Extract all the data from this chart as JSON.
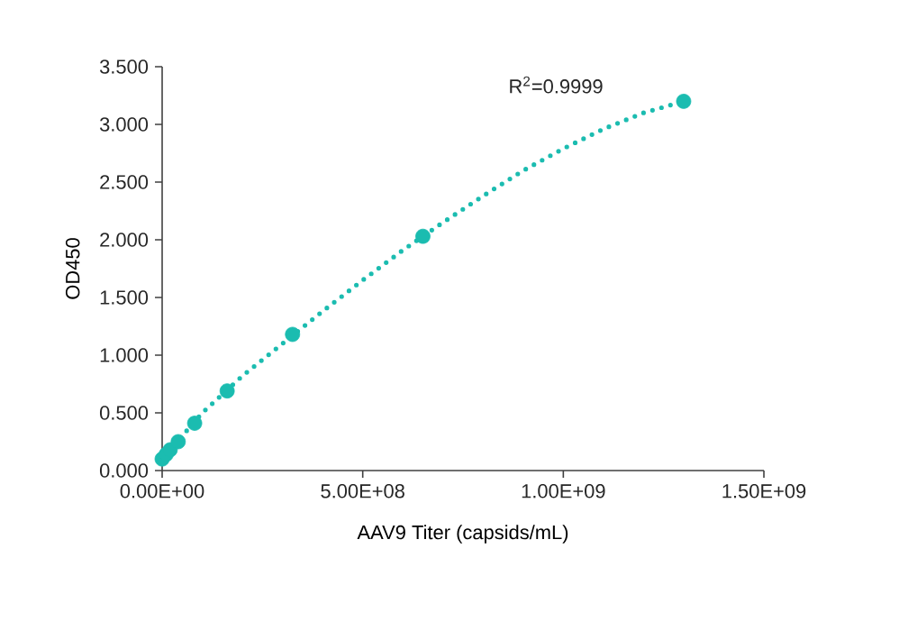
{
  "chart_data": {
    "type": "scatter",
    "xlabel": "AAV9 Titer (capsids/mL)",
    "ylabel": "OD450",
    "annotations": [
      "R$^{2}$=0.9999"
    ],
    "xlim": [
      0,
      1500000000
    ],
    "ylim": [
      0,
      3.5
    ],
    "xticks": [
      {
        "value": 0,
        "label": "0.00E+00"
      },
      {
        "value": 500000000,
        "label": "5.00E+08"
      },
      {
        "value": 1000000000,
        "label": "1.00E+09"
      },
      {
        "value": 1500000000,
        "label": "1.50E+09"
      }
    ],
    "yticks": [
      {
        "value": 0,
        "label": "0.000"
      },
      {
        "value": 0.5,
        "label": "0.500"
      },
      {
        "value": 1,
        "label": "1.000"
      },
      {
        "value": 1.5,
        "label": "1.500"
      },
      {
        "value": 2,
        "label": "2.000"
      },
      {
        "value": 2.5,
        "label": "2.500"
      },
      {
        "value": 3,
        "label": "3.000"
      },
      {
        "value": 3.5,
        "label": "3.500"
      }
    ],
    "series": [
      {
        "type": "line",
        "color": "#1bbcb0",
        "line_style": "dotted",
        "marker": "none",
        "x": [
          0,
          100000000,
          200000000,
          300000000,
          400000000,
          500000000,
          600000000,
          700000000,
          800000000,
          900000000,
          1000000000,
          1100000000,
          1200000000,
          1300000000
        ],
        "values": [
          0.1,
          0.5,
          0.82,
          1.1,
          1.38,
          1.65,
          1.91,
          2.15,
          2.38,
          2.6,
          2.79,
          2.96,
          3.1,
          3.2
        ]
      },
      {
        "color": "#1bbcb0",
        "marker": "circle",
        "x": [
          0,
          10000000,
          20000000,
          40000000,
          81000000,
          162000000,
          325000000,
          650000000,
          1300000000
        ],
        "values": [
          0.1,
          0.14,
          0.18,
          0.25,
          0.41,
          0.69,
          1.18,
          2.03,
          3.2
        ]
      }
    ]
  }
}
